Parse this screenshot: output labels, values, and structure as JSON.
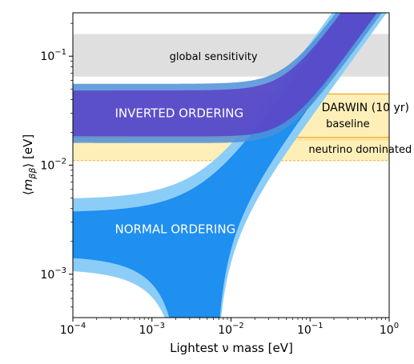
{
  "chart_data": {
    "type": "area",
    "title": "",
    "xlabel": "Lightest ν mass [eV]",
    "ylabel": {
      "pre": "⟨",
      "m": "m",
      "sub": "ββ",
      "post": "⟩ [eV]"
    },
    "xscale": "log",
    "yscale": "log",
    "xlim": [
      0.0001,
      1
    ],
    "ylim": [
      0.0004,
      0.25
    ],
    "grid": false,
    "xticks": [
      {
        "value": 0.0001,
        "base": "10",
        "exp": "−4"
      },
      {
        "value": 0.001,
        "base": "10",
        "exp": "−3"
      },
      {
        "value": 0.01,
        "base": "10",
        "exp": "−2"
      },
      {
        "value": 0.1,
        "base": "10",
        "exp": "−1"
      },
      {
        "value": 1,
        "base": "10",
        "exp": "0"
      }
    ],
    "yticks": [
      {
        "value": 0.001,
        "base": "10",
        "exp": "−3"
      },
      {
        "value": 0.01,
        "base": "10",
        "exp": "−2"
      },
      {
        "value": 0.1,
        "base": "10",
        "exp": "−1"
      }
    ],
    "hbands": [
      {
        "label": "global sensitivity",
        "ymin": 0.065,
        "ymax": 0.16,
        "color": "#d9d9d9",
        "alpha": 0.85
      },
      {
        "label": "baseline",
        "ymin": 0.017,
        "ymax": 0.045,
        "color": "#fde9a0",
        "alpha": 0.75,
        "edge": "#f5a623"
      },
      {
        "label": "neutrino dominated",
        "ymin": 0.011,
        "ymax": 0.018,
        "color": "#fde9a0",
        "alpha": 0.75,
        "edge": "#f5a623"
      }
    ],
    "series": [
      {
        "name": "INVERTED ORDERING",
        "ordering": "inverted",
        "outer_color": "#4d8fd8",
        "inner_color": "#5b42c8",
        "alpha": 0.85
      },
      {
        "name": "NORMAL ORDERING",
        "ordering": "normal",
        "outer_color": "#8ccdf7",
        "inner_color": "#1f8ff0",
        "alpha": 1.0
      }
    ],
    "annotations": [
      {
        "id": "darwin",
        "text": "DARWIN (10 yr)",
        "x": 0.5,
        "y": 0.034
      },
      {
        "id": "baseline",
        "text": "baseline",
        "x": 0.3,
        "y": 0.024
      },
      {
        "id": "nudom",
        "text": "neutrino dominated",
        "x": 0.43,
        "y": 0.014
      },
      {
        "id": "global",
        "text": "global sensitivity",
        "x": 0.006,
        "y": 0.1
      },
      {
        "id": "io",
        "text": "INVERTED ORDERING",
        "x": 0.00034,
        "y": 0.03
      },
      {
        "id": "no",
        "text": "NORMAL ORDERING",
        "x": 0.00034,
        "y": 0.0026
      }
    ]
  }
}
